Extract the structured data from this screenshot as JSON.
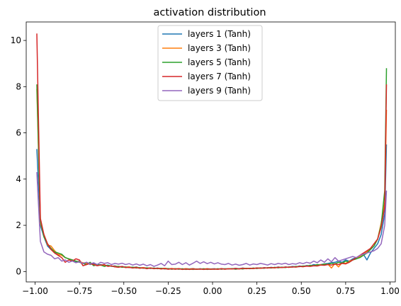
{
  "chart_data": {
    "type": "line",
    "title": "activation distribution",
    "xlabel": "",
    "ylabel": "",
    "xlim": [
      -1.05,
      1.03
    ],
    "ylim": [
      -0.45,
      10.8
    ],
    "xticks": [
      -1.0,
      -0.75,
      -0.5,
      -0.25,
      0.0,
      0.25,
      0.5,
      0.75,
      1.0
    ],
    "xtick_labels": [
      "−1.00",
      "−0.75",
      "−0.50",
      "−0.25",
      "0.00",
      "0.25",
      "0.50",
      "0.75",
      "1.00"
    ],
    "yticks": [
      0,
      2,
      4,
      6,
      8,
      10
    ],
    "ytick_labels": [
      "0",
      "2",
      "4",
      "6",
      "8",
      "10"
    ],
    "grid": false,
    "legend_position": "top-center",
    "x": [
      -0.99,
      -0.97,
      -0.95,
      -0.93,
      -0.91,
      -0.89,
      -0.87,
      -0.85,
      -0.83,
      -0.81,
      -0.79,
      -0.77,
      -0.75,
      -0.73,
      -0.71,
      -0.69,
      -0.67,
      -0.65,
      -0.63,
      -0.61,
      -0.59,
      -0.57,
      -0.55,
      -0.53,
      -0.51,
      -0.49,
      -0.47,
      -0.45,
      -0.43,
      -0.41,
      -0.39,
      -0.37,
      -0.35,
      -0.33,
      -0.31,
      -0.29,
      -0.27,
      -0.25,
      -0.23,
      -0.21,
      -0.19,
      -0.17,
      -0.15,
      -0.13,
      -0.11,
      -0.09,
      -0.07,
      -0.05,
      -0.03,
      -0.01,
      0.01,
      0.03,
      0.05,
      0.07,
      0.09,
      0.11,
      0.13,
      0.15,
      0.17,
      0.19,
      0.21,
      0.23,
      0.25,
      0.27,
      0.29,
      0.31,
      0.33,
      0.35,
      0.37,
      0.39,
      0.41,
      0.43,
      0.45,
      0.47,
      0.49,
      0.51,
      0.53,
      0.55,
      0.57,
      0.59,
      0.61,
      0.63,
      0.65,
      0.67,
      0.69,
      0.71,
      0.73,
      0.75,
      0.77,
      0.79,
      0.81,
      0.83,
      0.85,
      0.87,
      0.89,
      0.91,
      0.93,
      0.95,
      0.97,
      0.98
    ],
    "series": [
      {
        "name": "layers 1 (Tanh)",
        "color": "#1f77b4",
        "values": [
          5.3,
          2.0,
          1.5,
          1.1,
          0.95,
          0.85,
          0.7,
          0.75,
          0.6,
          0.55,
          0.5,
          0.42,
          0.45,
          0.35,
          0.4,
          0.3,
          0.35,
          0.28,
          0.3,
          0.25,
          0.28,
          0.22,
          0.25,
          0.2,
          0.22,
          0.18,
          0.2,
          0.17,
          0.2,
          0.15,
          0.17,
          0.14,
          0.16,
          0.13,
          0.15,
          0.12,
          0.14,
          0.12,
          0.13,
          0.11,
          0.13,
          0.1,
          0.12,
          0.11,
          0.13,
          0.1,
          0.12,
          0.1,
          0.12,
          0.11,
          0.12,
          0.1,
          0.13,
          0.11,
          0.12,
          0.12,
          0.14,
          0.12,
          0.15,
          0.13,
          0.14,
          0.13,
          0.16,
          0.14,
          0.17,
          0.15,
          0.18,
          0.16,
          0.2,
          0.17,
          0.2,
          0.18,
          0.22,
          0.2,
          0.24,
          0.22,
          0.26,
          0.24,
          0.3,
          0.27,
          0.3,
          0.33,
          0.35,
          0.38,
          0.4,
          0.45,
          0.4,
          0.5,
          0.45,
          0.55,
          0.6,
          0.65,
          0.75,
          0.5,
          0.8,
          1.0,
          1.2,
          1.6,
          2.5,
          5.5
        ]
      },
      {
        "name": "layers 3 (Tanh)",
        "color": "#ff7f0e",
        "values": [
          7.9,
          2.1,
          1.6,
          1.15,
          1.1,
          0.9,
          0.75,
          0.7,
          0.6,
          0.55,
          0.5,
          0.45,
          0.42,
          0.38,
          0.35,
          0.33,
          0.3,
          0.3,
          0.27,
          0.26,
          0.25,
          0.23,
          0.22,
          0.22,
          0.2,
          0.19,
          0.2,
          0.17,
          0.18,
          0.16,
          0.17,
          0.15,
          0.15,
          0.14,
          0.14,
          0.13,
          0.14,
          0.12,
          0.13,
          0.12,
          0.12,
          0.11,
          0.12,
          0.11,
          0.12,
          0.1,
          0.11,
          0.11,
          0.12,
          0.1,
          0.11,
          0.1,
          0.12,
          0.11,
          0.12,
          0.12,
          0.13,
          0.12,
          0.14,
          0.13,
          0.14,
          0.13,
          0.15,
          0.14,
          0.16,
          0.15,
          0.17,
          0.16,
          0.18,
          0.17,
          0.19,
          0.18,
          0.2,
          0.2,
          0.22,
          0.21,
          0.24,
          0.23,
          0.26,
          0.25,
          0.3,
          0.28,
          0.32,
          0.15,
          0.35,
          0.2,
          0.38,
          0.35,
          0.45,
          0.5,
          0.55,
          0.65,
          0.75,
          0.85,
          1.0,
          1.2,
          1.4,
          2.1,
          3.0,
          7.0
        ]
      },
      {
        "name": "layers 5 (Tanh)",
        "color": "#2ca02c",
        "values": [
          8.1,
          2.2,
          1.5,
          1.2,
          1.0,
          0.85,
          0.8,
          0.75,
          0.6,
          0.55,
          0.5,
          0.45,
          0.4,
          0.35,
          0.3,
          0.4,
          0.25,
          0.3,
          0.28,
          0.22,
          0.26,
          0.24,
          0.2,
          0.22,
          0.18,
          0.2,
          0.17,
          0.19,
          0.15,
          0.17,
          0.14,
          0.16,
          0.13,
          0.15,
          0.12,
          0.14,
          0.11,
          0.13,
          0.1,
          0.12,
          0.1,
          0.12,
          0.09,
          0.11,
          0.09,
          0.11,
          0.1,
          0.12,
          0.09,
          0.11,
          0.1,
          0.12,
          0.1,
          0.12,
          0.11,
          0.13,
          0.1,
          0.13,
          0.11,
          0.14,
          0.12,
          0.15,
          0.13,
          0.16,
          0.14,
          0.17,
          0.15,
          0.18,
          0.16,
          0.19,
          0.17,
          0.2,
          0.19,
          0.22,
          0.21,
          0.24,
          0.23,
          0.27,
          0.25,
          0.3,
          0.28,
          0.33,
          0.3,
          0.36,
          0.33,
          0.4,
          0.36,
          0.45,
          0.4,
          0.5,
          0.55,
          0.6,
          0.7,
          0.8,
          0.95,
          1.1,
          1.4,
          2.0,
          3.5,
          8.8
        ]
      },
      {
        "name": "layers 7 (Tanh)",
        "color": "#d62728",
        "values": [
          10.3,
          2.3,
          1.6,
          1.2,
          0.95,
          0.8,
          0.7,
          0.6,
          0.4,
          0.5,
          0.45,
          0.55,
          0.5,
          0.25,
          0.3,
          0.35,
          0.3,
          0.25,
          0.28,
          0.3,
          0.22,
          0.25,
          0.2,
          0.18,
          0.22,
          0.17,
          0.18,
          0.15,
          0.17,
          0.14,
          0.16,
          0.12,
          0.15,
          0.12,
          0.14,
          0.11,
          0.13,
          0.1,
          0.12,
          0.1,
          0.12,
          0.09,
          0.11,
          0.09,
          0.11,
          0.1,
          0.11,
          0.09,
          0.11,
          0.1,
          0.11,
          0.1,
          0.12,
          0.1,
          0.12,
          0.11,
          0.13,
          0.11,
          0.14,
          0.12,
          0.14,
          0.13,
          0.15,
          0.14,
          0.16,
          0.15,
          0.17,
          0.16,
          0.18,
          0.17,
          0.19,
          0.18,
          0.2,
          0.19,
          0.22,
          0.21,
          0.23,
          0.22,
          0.25,
          0.24,
          0.28,
          0.27,
          0.3,
          0.28,
          0.32,
          0.3,
          0.35,
          0.33,
          0.4,
          0.5,
          0.6,
          0.7,
          0.8,
          0.9,
          1.0,
          1.2,
          1.4,
          1.9,
          2.8,
          8.1
        ]
      },
      {
        "name": "layers 9 (Tanh)",
        "color": "#9467bd",
        "values": [
          4.3,
          1.3,
          0.85,
          0.75,
          0.7,
          0.55,
          0.6,
          0.45,
          0.5,
          0.4,
          0.45,
          0.38,
          0.42,
          0.35,
          0.4,
          0.33,
          0.38,
          0.3,
          0.4,
          0.35,
          0.38,
          0.3,
          0.35,
          0.32,
          0.36,
          0.3,
          0.34,
          0.28,
          0.33,
          0.27,
          0.32,
          0.25,
          0.3,
          0.22,
          0.28,
          0.35,
          0.25,
          0.45,
          0.3,
          0.32,
          0.4,
          0.3,
          0.38,
          0.28,
          0.36,
          0.45,
          0.35,
          0.42,
          0.34,
          0.4,
          0.33,
          0.38,
          0.32,
          0.3,
          0.35,
          0.28,
          0.32,
          0.27,
          0.3,
          0.35,
          0.28,
          0.33,
          0.3,
          0.35,
          0.32,
          0.28,
          0.34,
          0.3,
          0.35,
          0.32,
          0.36,
          0.3,
          0.34,
          0.32,
          0.38,
          0.34,
          0.4,
          0.36,
          0.45,
          0.38,
          0.5,
          0.4,
          0.55,
          0.42,
          0.6,
          0.45,
          0.5,
          0.55,
          0.6,
          0.65,
          0.6,
          0.7,
          0.75,
          0.8,
          0.85,
          0.9,
          1.0,
          1.2,
          2.0,
          3.5
        ]
      }
    ]
  }
}
